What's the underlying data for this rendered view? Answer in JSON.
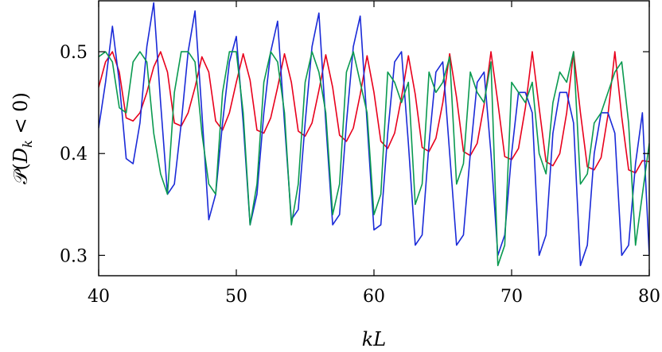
{
  "chart_data": {
    "type": "line",
    "title": "",
    "xlabel": "kL",
    "ylabel": "𝒫(D_k < 0)",
    "ylabel_parts": {
      "script": "𝒫(",
      "var": "D",
      "sub": "k",
      "rest": " < 0)"
    },
    "xlim": [
      40,
      80
    ],
    "ylim": [
      0.28,
      0.55
    ],
    "xticks": [
      40,
      50,
      60,
      70,
      80
    ],
    "xtick_labels": [
      "40",
      "50",
      "60",
      "70",
      "80"
    ],
    "yticks": [
      0.3,
      0.4,
      0.5
    ],
    "ytick_labels": [
      "0.3",
      "0.4",
      "0.5"
    ],
    "grid": false,
    "legend": "none",
    "series": [
      {
        "color": "#e8001c",
        "x": [
          40,
          40.5,
          41,
          41.5,
          42,
          42.5,
          43,
          43.5,
          44,
          44.5,
          45,
          45.5,
          46,
          46.5,
          47,
          47.5,
          48,
          48.5,
          49,
          49.5,
          50,
          50.5,
          51,
          51.5,
          52,
          52.5,
          53,
          53.5,
          54,
          54.5,
          55,
          55.5,
          56,
          56.5,
          57,
          57.5,
          58,
          58.5,
          59,
          59.5,
          60,
          60.5,
          61,
          61.5,
          62,
          62.5,
          63,
          63.5,
          64,
          64.5,
          65,
          65.5,
          66,
          66.5,
          67,
          67.5,
          68,
          68.5,
          69,
          69.5,
          70,
          70.5,
          71,
          71.5,
          72,
          72.5,
          73,
          73.5,
          74,
          74.5,
          75,
          75.5,
          76,
          76.5,
          77,
          77.5,
          78,
          78.5,
          79,
          79.5,
          80
        ],
        "y": [
          0.465,
          0.49,
          0.5,
          0.48,
          0.435,
          0.432,
          0.44,
          0.46,
          0.485,
          0.5,
          0.48,
          0.43,
          0.427,
          0.44,
          0.465,
          0.495,
          0.48,
          0.432,
          0.423,
          0.44,
          0.47,
          0.498,
          0.472,
          0.423,
          0.42,
          0.435,
          0.465,
          0.498,
          0.47,
          0.422,
          0.417,
          0.43,
          0.462,
          0.497,
          0.465,
          0.418,
          0.412,
          0.425,
          0.458,
          0.496,
          0.46,
          0.412,
          0.405,
          0.42,
          0.455,
          0.496,
          0.458,
          0.406,
          0.402,
          0.415,
          0.45,
          0.498,
          0.455,
          0.402,
          0.398,
          0.41,
          0.448,
          0.5,
          0.45,
          0.397,
          0.394,
          0.405,
          0.445,
          0.5,
          0.445,
          0.392,
          0.388,
          0.4,
          0.44,
          0.5,
          0.44,
          0.387,
          0.384,
          0.396,
          0.438,
          0.5,
          0.436,
          0.384,
          0.381,
          0.393,
          0.392
        ]
      },
      {
        "color": "#1a2ad8",
        "x": [
          40,
          40.5,
          41,
          41.5,
          42,
          42.5,
          43,
          43.5,
          44,
          44.5,
          45,
          45.5,
          46,
          46.5,
          47,
          47.5,
          48,
          48.5,
          49,
          49.5,
          50,
          50.5,
          51,
          51.5,
          52,
          52.5,
          53,
          53.5,
          54,
          54.5,
          55,
          55.5,
          56,
          56.5,
          57,
          57.5,
          58,
          58.5,
          59,
          59.5,
          60,
          60.5,
          61,
          61.5,
          62,
          62.5,
          63,
          63.5,
          64,
          64.5,
          65,
          65.5,
          66,
          66.5,
          67,
          67.5,
          68,
          68.5,
          69,
          69.5,
          70,
          70.5,
          71,
          71.5,
          72,
          72.5,
          73,
          73.5,
          74,
          74.5,
          75,
          75.5,
          76,
          76.5,
          77,
          77.5,
          78,
          78.5,
          79,
          79.5,
          80
        ],
        "y": [
          0.425,
          0.47,
          0.525,
          0.47,
          0.395,
          0.39,
          0.43,
          0.505,
          0.548,
          0.45,
          0.36,
          0.37,
          0.43,
          0.5,
          0.54,
          0.44,
          0.335,
          0.36,
          0.43,
          0.49,
          0.515,
          0.43,
          0.33,
          0.36,
          0.44,
          0.5,
          0.53,
          0.43,
          0.335,
          0.345,
          0.43,
          0.505,
          0.538,
          0.43,
          0.33,
          0.34,
          0.43,
          0.505,
          0.535,
          0.43,
          0.325,
          0.33,
          0.42,
          0.49,
          0.5,
          0.41,
          0.31,
          0.32,
          0.41,
          0.48,
          0.49,
          0.4,
          0.31,
          0.32,
          0.4,
          0.47,
          0.48,
          0.4,
          0.3,
          0.32,
          0.4,
          0.46,
          0.46,
          0.44,
          0.3,
          0.32,
          0.42,
          0.46,
          0.46,
          0.43,
          0.29,
          0.31,
          0.4,
          0.44,
          0.44,
          0.42,
          0.3,
          0.31,
          0.39,
          0.44,
          0.3
        ]
      },
      {
        "color": "#0a9a50",
        "x": [
          40,
          40.5,
          41,
          41.5,
          42,
          42.5,
          43,
          43.5,
          44,
          44.5,
          45,
          45.5,
          46,
          46.5,
          47,
          47.5,
          48,
          48.5,
          49,
          49.5,
          50,
          50.5,
          51,
          51.5,
          52,
          52.5,
          53,
          53.5,
          54,
          54.5,
          55,
          55.5,
          56,
          56.5,
          57,
          57.5,
          58,
          58.5,
          59,
          59.5,
          60,
          60.5,
          61,
          61.5,
          62,
          62.5,
          63,
          63.5,
          64,
          64.5,
          65,
          65.5,
          66,
          66.5,
          67,
          67.5,
          68,
          68.5,
          69,
          69.5,
          70,
          70.5,
          71,
          71.5,
          72,
          72.5,
          73,
          73.5,
          74,
          74.5,
          75,
          75.5,
          76,
          76.5,
          77,
          77.5,
          78,
          78.5,
          79,
          79.5,
          80
        ],
        "y": [
          0.495,
          0.5,
          0.49,
          0.445,
          0.44,
          0.49,
          0.5,
          0.49,
          0.42,
          0.38,
          0.36,
          0.46,
          0.5,
          0.5,
          0.49,
          0.42,
          0.37,
          0.36,
          0.46,
          0.5,
          0.5,
          0.44,
          0.33,
          0.37,
          0.47,
          0.5,
          0.49,
          0.44,
          0.33,
          0.37,
          0.47,
          0.5,
          0.48,
          0.44,
          0.34,
          0.37,
          0.48,
          0.5,
          0.47,
          0.44,
          0.34,
          0.36,
          0.48,
          0.47,
          0.45,
          0.47,
          0.35,
          0.37,
          0.48,
          0.46,
          0.47,
          0.495,
          0.37,
          0.39,
          0.48,
          0.46,
          0.45,
          0.49,
          0.29,
          0.31,
          0.47,
          0.46,
          0.45,
          0.47,
          0.4,
          0.38,
          0.45,
          0.48,
          0.47,
          0.5,
          0.37,
          0.38,
          0.43,
          0.44,
          0.46,
          0.48,
          0.49,
          0.43,
          0.31,
          0.36,
          0.41
        ]
      }
    ]
  }
}
